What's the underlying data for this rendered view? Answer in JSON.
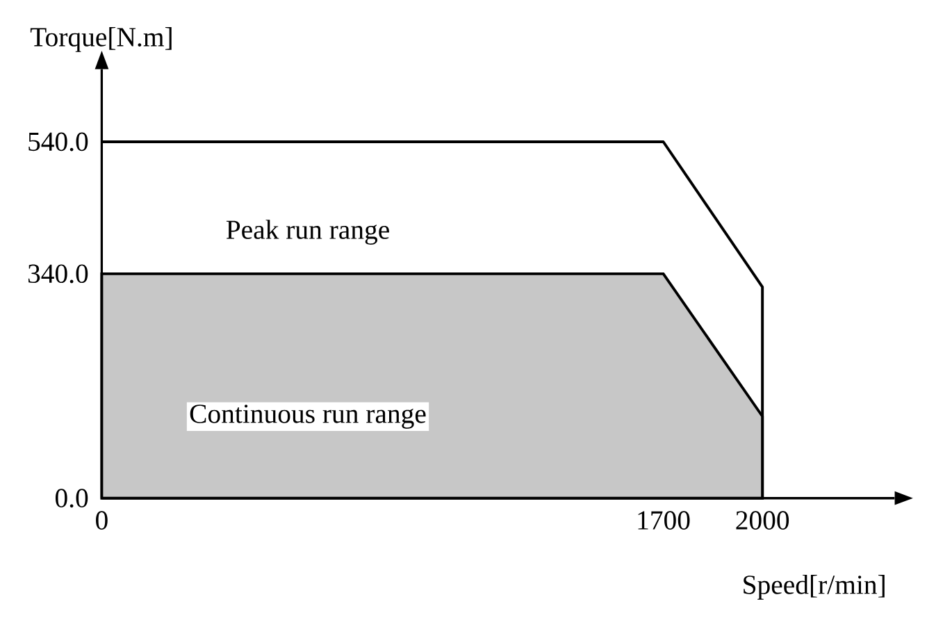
{
  "chart_data": {
    "type": "area",
    "xlabel": "Speed[r/min]",
    "ylabel": "Torque[N.m]",
    "xlim": [
      0,
      2400
    ],
    "ylim": [
      0,
      650
    ],
    "xticks": [
      0,
      1700,
      2000
    ],
    "yticks": [
      {
        "value": 0,
        "label": "0.0"
      },
      {
        "value": 340,
        "label": "340.0"
      },
      {
        "value": 540,
        "label": "540.0"
      }
    ],
    "series": [
      {
        "type": "line",
        "color": "#000000",
        "x": [
          0,
          1700,
          2000,
          2000
        ],
        "values": [
          540,
          540,
          320,
          0
        ]
      },
      {
        "color": "#000000",
        "x": [
          0,
          1700,
          2000
        ],
        "values": [
          340,
          340,
          124
        ]
      }
    ],
    "annotations": [
      "Peak run range",
      "Continuous run range"
    ]
  }
}
